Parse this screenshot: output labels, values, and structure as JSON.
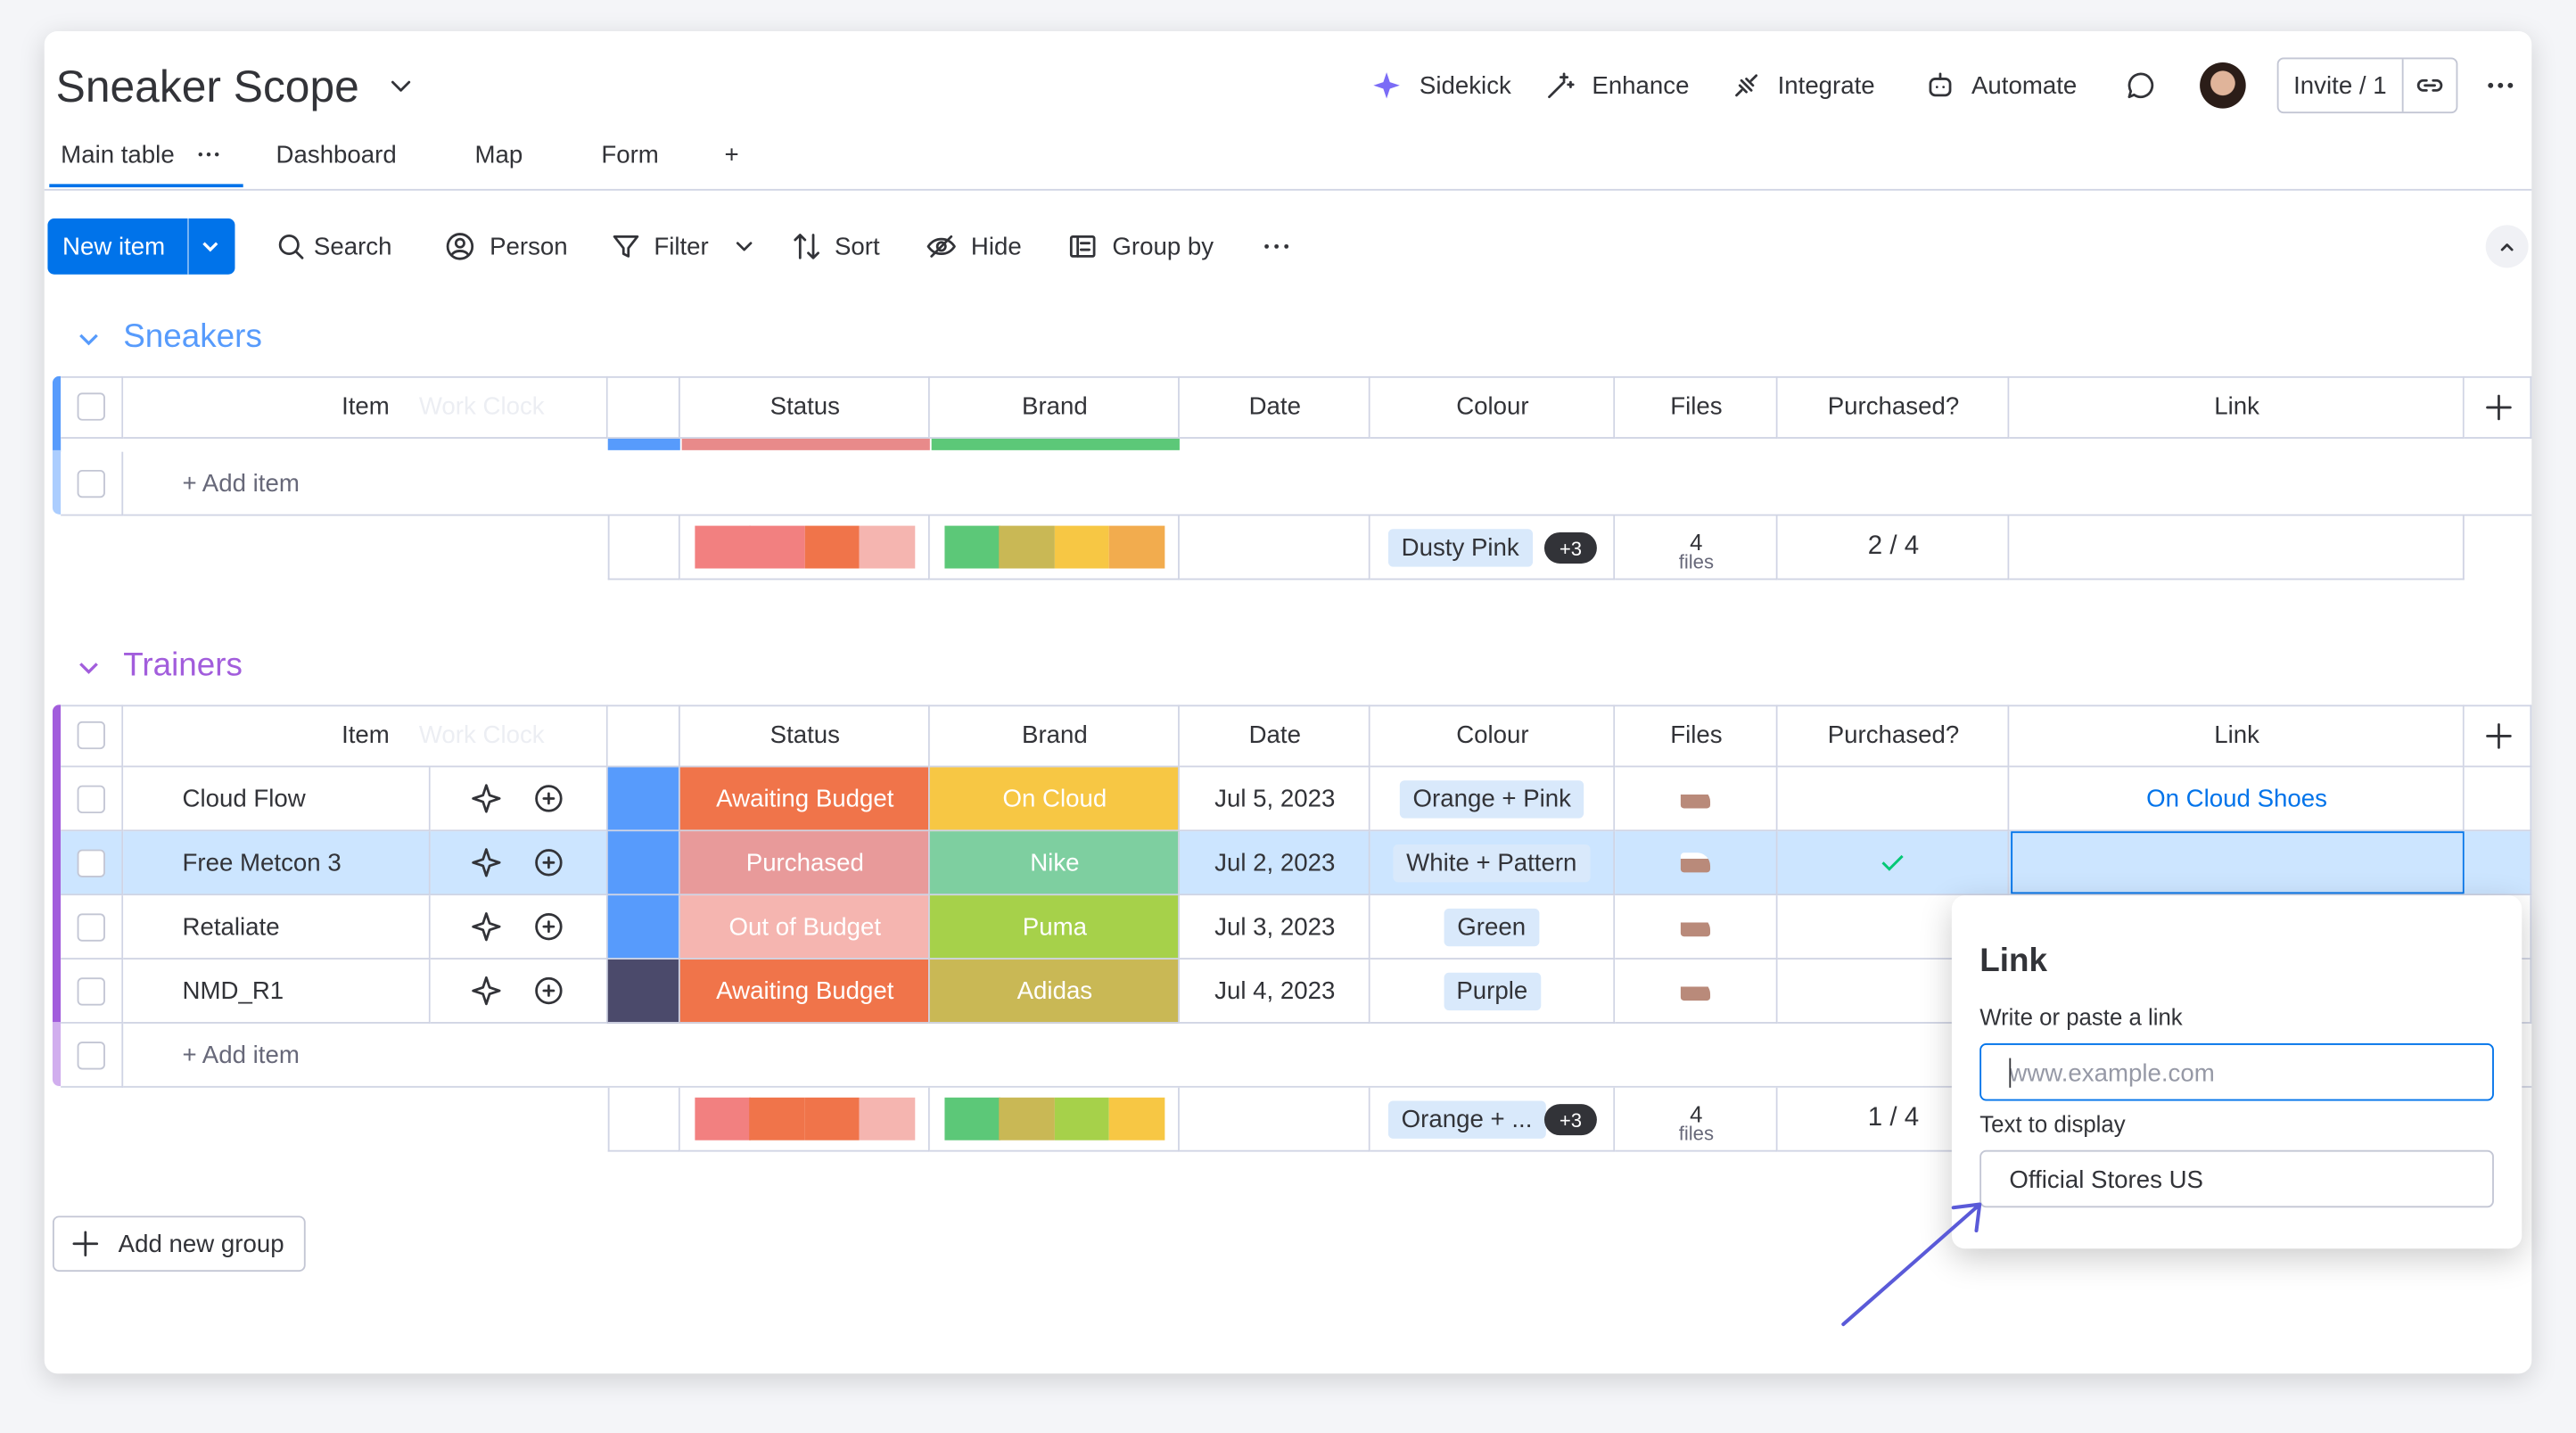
{
  "header": {
    "title": "Sneaker Scope",
    "actions": [
      "Sidekick",
      "Enhance",
      "Integrate",
      "Automate"
    ],
    "invite": "Invite / 1"
  },
  "tabs": [
    "Main table",
    "Dashboard",
    "Map",
    "Form",
    "+"
  ],
  "toolbar": {
    "new_item": "New item",
    "tools": [
      "Search",
      "Person",
      "Filter",
      "Sort",
      "Hide",
      "Group by"
    ]
  },
  "columns": [
    "Item",
    "Status",
    "Brand",
    "Date",
    "Colour",
    "Files",
    "Purchased?",
    "Link"
  ],
  "ghost": "Work Clock",
  "groups": [
    {
      "name": "Sneakers",
      "color": "#579bfc",
      "add_item": "+ Add item",
      "rows": [],
      "summary": {
        "status_colors": [
          "#f28080",
          "#f28080",
          "#f0744a",
          "#f5b5b0"
        ],
        "brand_colors": [
          "#5cc878",
          "#c9b855",
          "#f7c744",
          "#f2ac4e"
        ],
        "colour": "Dusty Pink",
        "colour_more": "+3",
        "files_count": "4",
        "files_unit": "files",
        "purchased": "2 / 4"
      }
    },
    {
      "name": "Trainers",
      "color": "#a25ddc",
      "add_item": "+ Add item",
      "rows": [
        {
          "item": "Cloud Flow",
          "strip": "#579bfc",
          "status": "Awaiting Budget",
          "status_color": "#f0744a",
          "brand": "On Cloud",
          "brand_color": "#f7c744",
          "date": "Jul 5, 2023",
          "colour": "Orange + Pink",
          "purchased": false,
          "link": "On Cloud Shoes"
        },
        {
          "item": "Free Metcon 3",
          "strip": "#579bfc",
          "status": "Purchased",
          "status_color": "#e89a9a",
          "brand": "Nike",
          "brand_color": "#7ecfa0",
          "date": "Jul 2, 2023",
          "colour": "White + Pattern",
          "purchased": true,
          "selected": true
        },
        {
          "item": "Retaliate",
          "strip": "#579bfc",
          "status": "Out of Budget",
          "status_color": "#f5b5b0",
          "brand": "Puma",
          "brand_color": "#a6d14a",
          "date": "Jul 3, 2023",
          "colour": "Green",
          "purchased": false
        },
        {
          "item": "NMD_R1",
          "strip": "#4b4a6b",
          "status": "Awaiting Budget",
          "status_color": "#f0744a",
          "brand": "Adidas",
          "brand_color": "#c9b855",
          "date": "Jul 4, 2023",
          "colour": "Purple",
          "purchased": false
        }
      ],
      "summary": {
        "status_colors": [
          "#f28080",
          "#f0744a",
          "#f0744a",
          "#f5b5b0"
        ],
        "brand_colors": [
          "#5cc878",
          "#c9b855",
          "#a6d14a",
          "#f7c744"
        ],
        "colour": "Orange + ...",
        "colour_more": "+3",
        "files_count": "4",
        "files_unit": "files",
        "purchased": "1 / 4"
      }
    }
  ],
  "add_group": "Add new group",
  "popup": {
    "title": "Link",
    "link_label": "Write or paste a link",
    "link_placeholder": "www.example.com",
    "text_label": "Text to display",
    "text_value": "Official Stores US"
  }
}
